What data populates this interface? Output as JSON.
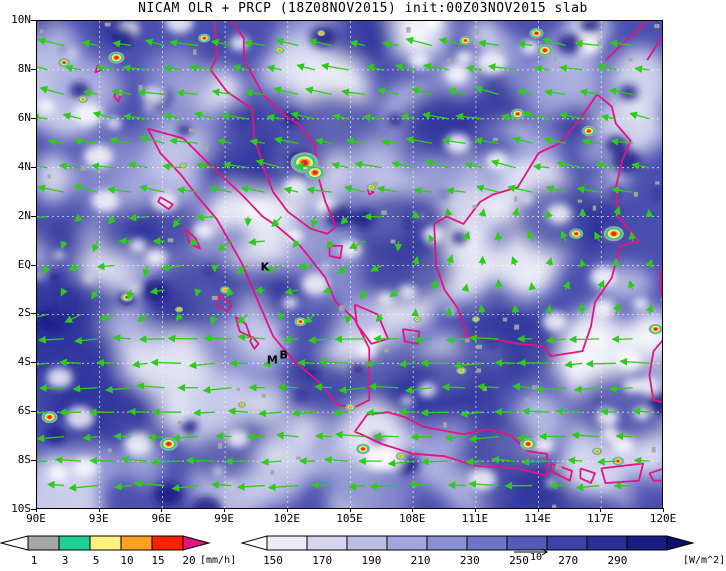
{
  "title": "NICAM OLR + PRCP (18Z08NOV2015) init:00Z03NOV2015 slab",
  "map": {
    "lat_labels": [
      "10N",
      "8N",
      "6N",
      "4N",
      "2N",
      "EQ",
      "2S",
      "4S",
      "6S",
      "8S",
      "10S"
    ],
    "lon_labels": [
      "90E",
      "93E",
      "96E",
      "99E",
      "102E",
      "105E",
      "108E",
      "111E",
      "114E",
      "117E",
      "120E"
    ],
    "extent": {
      "lon_min": 90,
      "lon_max": 120,
      "lat_min": -10,
      "lat_max": 10
    },
    "place_markers": [
      {
        "label": "K",
        "lon": 100.7,
        "lat": -0.2
      },
      {
        "label": "M",
        "lon": 101.0,
        "lat": -4.0
      },
      {
        "label": "B",
        "lon": 101.6,
        "lat": -3.8
      }
    ],
    "reference_vector_label": "10",
    "colors": {
      "coast": "#e0157f",
      "wind": "#2ecc1a",
      "grid": "#ffffff"
    }
  },
  "precip_legend": {
    "labels": [
      "1",
      "3",
      "5",
      "10",
      "15",
      "20"
    ],
    "unit": "[mm/h]",
    "colors": [
      "#ffffff",
      "#a6a6a6",
      "#1fcf94",
      "#fff280",
      "#ffa020",
      "#ff2000",
      "#e0157f"
    ]
  },
  "olr_legend": {
    "labels": [
      "150",
      "170",
      "190",
      "210",
      "230",
      "250",
      "270",
      "290"
    ],
    "unit": "[W/m^2]",
    "colors": [
      "#ffffff",
      "#ebebf7",
      "#d3d4ee",
      "#bbbde5",
      "#a3a6dc",
      "#8a8fd2",
      "#6e73c5",
      "#555bb9",
      "#3d42a8",
      "#2a2f98",
      "#1a1d84",
      "#0e1070"
    ]
  }
}
